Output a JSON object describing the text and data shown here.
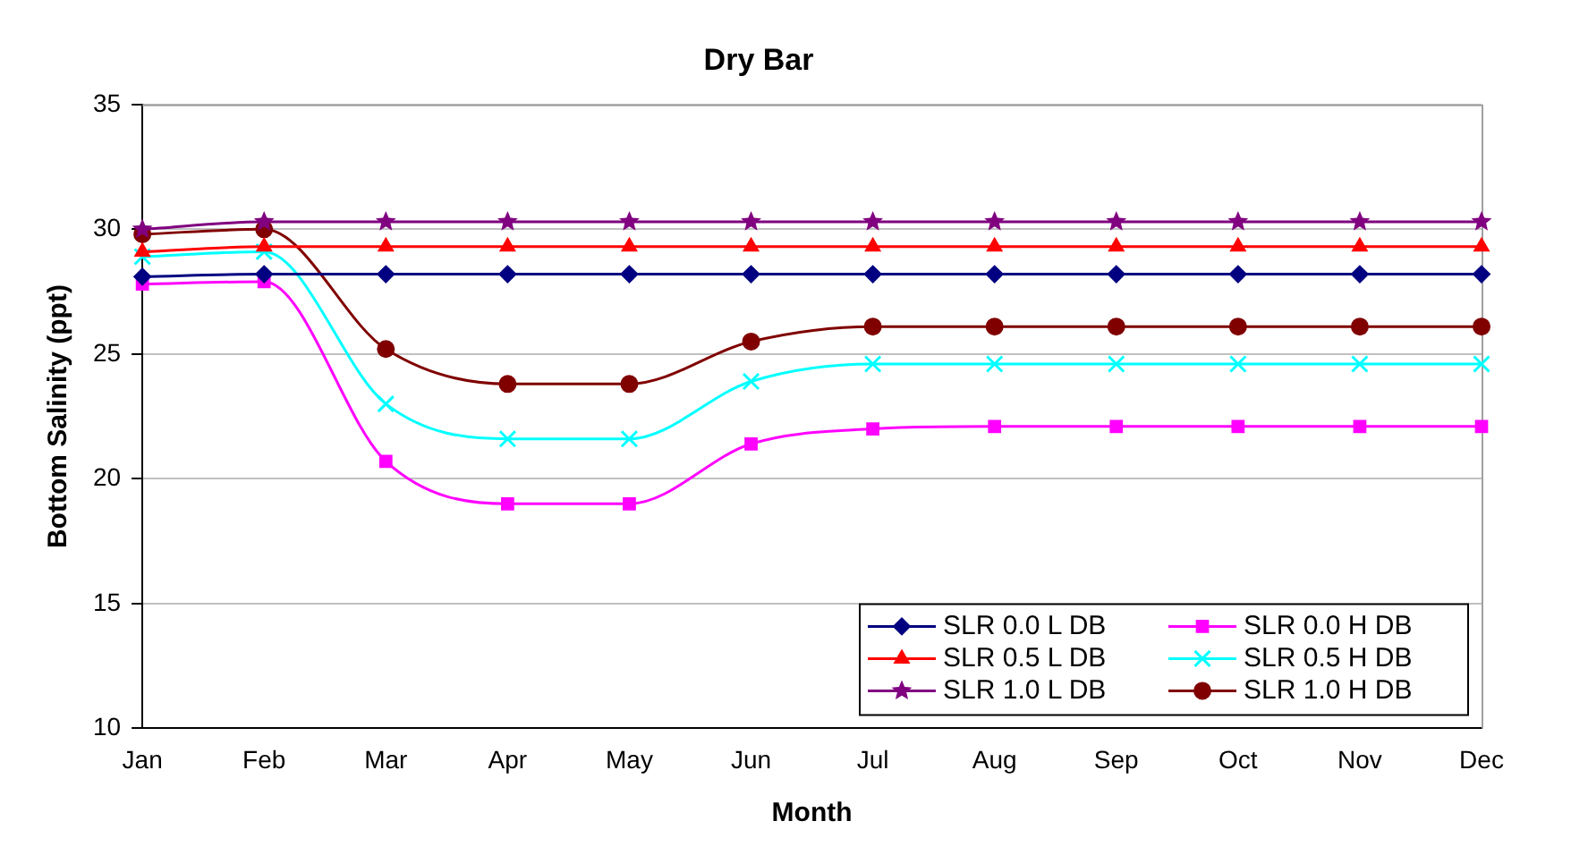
{
  "chart_data": {
    "type": "line",
    "title": "Dry Bar",
    "xlabel": "Month",
    "ylabel": "Bottom Salinity (ppt)",
    "categories": [
      "Jan",
      "Feb",
      "Mar",
      "Apr",
      "May",
      "Jun",
      "Jul",
      "Aug",
      "Sep",
      "Oct",
      "Nov",
      "Dec"
    ],
    "ylim": [
      10,
      35
    ],
    "yticks": [
      10,
      15,
      20,
      25,
      30,
      35
    ],
    "grid": "y",
    "legend": "bottom right",
    "line_style": "solid",
    "series": [
      {
        "name": "SLR 0.0 L DB",
        "color": "#000080",
        "marker": "diamond",
        "values": [
          28.1,
          28.2,
          28.2,
          28.2,
          28.2,
          28.2,
          28.2,
          28.2,
          28.2,
          28.2,
          28.2,
          28.2
        ]
      },
      {
        "name": "SLR 0.5 L DB",
        "color": "#ff0000",
        "marker": "triangle",
        "values": [
          29.1,
          29.3,
          29.3,
          29.3,
          29.3,
          29.3,
          29.3,
          29.3,
          29.3,
          29.3,
          29.3,
          29.3
        ]
      },
      {
        "name": "SLR 1.0 L DB",
        "color": "#800080",
        "marker": "star",
        "values": [
          30.0,
          30.3,
          30.3,
          30.3,
          30.3,
          30.3,
          30.3,
          30.3,
          30.3,
          30.3,
          30.3,
          30.3
        ]
      },
      {
        "name": "SLR 0.0 H DB",
        "color": "#ff00ff",
        "marker": "square",
        "values": [
          27.8,
          27.9,
          20.7,
          19.0,
          19.0,
          21.4,
          22.0,
          22.1,
          22.1,
          22.1,
          22.1,
          22.1
        ]
      },
      {
        "name": "SLR 0.5 H DB",
        "color": "#00ffff",
        "marker": "cross",
        "values": [
          28.9,
          29.1,
          23.0,
          21.6,
          21.6,
          23.9,
          24.6,
          24.6,
          24.6,
          24.6,
          24.6,
          24.6
        ]
      },
      {
        "name": "SLR 1.0 H DB",
        "color": "#800000",
        "marker": "circle",
        "values": [
          29.8,
          30.0,
          25.2,
          23.8,
          23.8,
          25.5,
          26.1,
          26.1,
          26.1,
          26.1,
          26.1,
          26.1
        ]
      }
    ]
  }
}
